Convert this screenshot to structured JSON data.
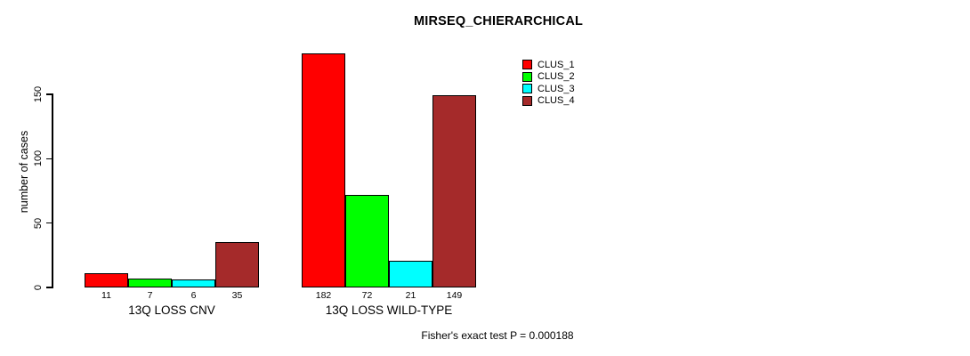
{
  "chart_data": {
    "type": "bar",
    "title": "MIRSEQ_CHIERARCHICAL",
    "ylabel": "number of cases",
    "xlabel": "",
    "categories": [
      "13Q LOSS CNV",
      "13Q LOSS WILD-TYPE"
    ],
    "series": [
      {
        "name": "CLUS_1",
        "color": "#FF0000",
        "values": [
          11,
          182
        ]
      },
      {
        "name": "CLUS_2",
        "color": "#00FF00",
        "values": [
          7,
          72
        ]
      },
      {
        "name": "CLUS_3",
        "color": "#00FFFF",
        "values": [
          6,
          21
        ]
      },
      {
        "name": "CLUS_4",
        "color": "#A52A2A",
        "values": [
          35,
          149
        ]
      }
    ],
    "bar_value_labels": [
      [
        "11",
        "7",
        "6",
        "35"
      ],
      [
        "182",
        "72",
        "21",
        "149"
      ]
    ],
    "yticks": [
      0,
      50,
      100,
      150
    ],
    "ylim": [
      0,
      185
    ],
    "grid": false,
    "legend_position": "top-right",
    "annotation": "Fisher's exact test P = 0.000188"
  }
}
